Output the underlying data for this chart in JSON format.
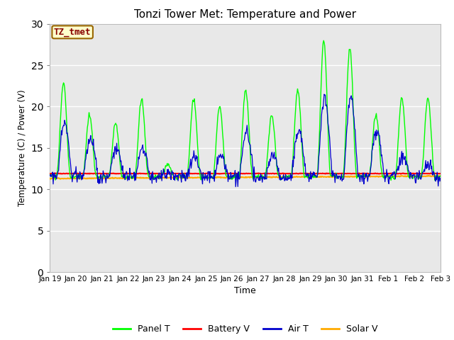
{
  "title": "Tonzi Tower Met: Temperature and Power",
  "xlabel": "Time",
  "ylabel": "Temperature (C) / Power (V)",
  "ylim": [
    0,
    30
  ],
  "yticks": [
    0,
    5,
    10,
    15,
    20,
    25,
    30
  ],
  "fig_bg_color": "#ffffff",
  "plot_bg_color": "#e8e8e8",
  "grid_color": "#d0d0d0",
  "label_box_text": "TZ_tmet",
  "label_box_facecolor": "#ffffcc",
  "label_box_edgecolor": "#996600",
  "label_box_textcolor": "#880000",
  "colors": {
    "panel_t": "#00ff00",
    "battery_v": "#ff0000",
    "air_t": "#0000cc",
    "solar_v": "#ffaa00"
  },
  "legend_labels": [
    "Panel T",
    "Battery V",
    "Air T",
    "Solar V"
  ],
  "tick_labels": [
    "Jan 19",
    "Jan 20",
    "Jan 21",
    "Jan 22",
    "Jan 23",
    "Jan 24",
    "Jan 25",
    "Jan 26",
    "Jan 27",
    "Jan 28",
    "Jan 29",
    "Jan 30",
    "Jan 31",
    "Feb 1",
    "Feb 2",
    "Feb 3"
  ],
  "battery_v_value": 11.9,
  "solar_v_value": 11.4,
  "n_days": 15
}
